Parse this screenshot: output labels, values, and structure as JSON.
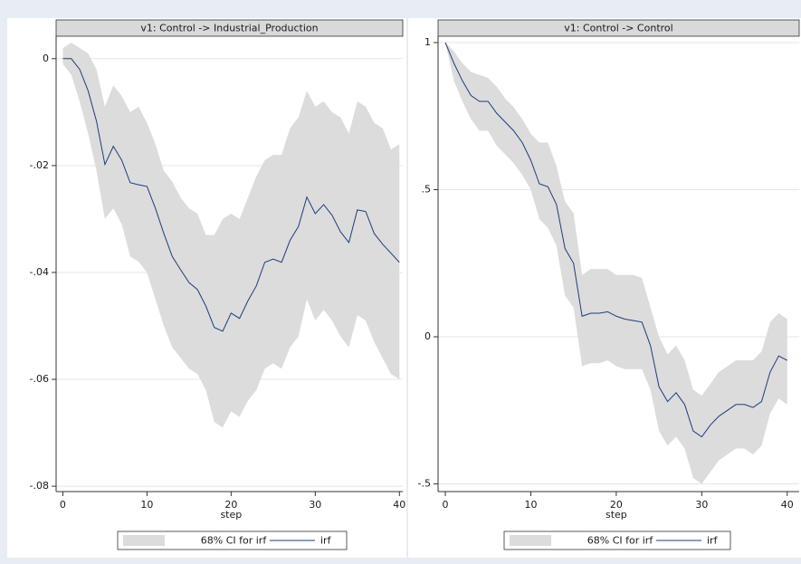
{
  "chart_data": [
    {
      "type": "line",
      "title": "v1: Control -> Industrial_Production",
      "x_label": "step",
      "x": [
        0,
        1,
        2,
        3,
        4,
        5,
        6,
        7,
        8,
        9,
        10,
        11,
        12,
        13,
        14,
        15,
        16,
        17,
        18,
        19,
        20,
        21,
        22,
        23,
        24,
        25,
        26,
        27,
        28,
        29,
        30,
        31,
        32,
        33,
        34,
        35,
        36,
        37,
        38,
        39,
        40
      ],
      "series": [
        {
          "name": "68% CI for irf",
          "color": "#dcdcdc",
          "upper": [
            0.002,
            0.003,
            0.002,
            0.001,
            -0.002,
            -0.009,
            -0.005,
            -0.007,
            -0.01,
            -0.009,
            -0.012,
            -0.016,
            -0.021,
            -0.023,
            -0.026,
            -0.028,
            -0.029,
            -0.033,
            -0.033,
            -0.03,
            -0.029,
            -0.03,
            -0.026,
            -0.022,
            -0.019,
            -0.018,
            -0.018,
            -0.013,
            -0.011,
            -0.006,
            -0.009,
            -0.008,
            -0.01,
            -0.011,
            -0.014,
            -0.008,
            -0.009,
            -0.012,
            -0.013,
            -0.017,
            -0.016
          ],
          "lower": [
            -0.001,
            -0.003,
            -0.008,
            -0.014,
            -0.021,
            -0.03,
            -0.028,
            -0.031,
            -0.037,
            -0.038,
            -0.04,
            -0.045,
            -0.05,
            -0.054,
            -0.056,
            -0.058,
            -0.059,
            -0.062,
            -0.068,
            -0.069,
            -0.066,
            -0.067,
            -0.064,
            -0.062,
            -0.058,
            -0.057,
            -0.058,
            -0.054,
            -0.052,
            -0.045,
            -0.049,
            -0.047,
            -0.049,
            -0.052,
            -0.054,
            -0.048,
            -0.049,
            -0.053,
            -0.056,
            -0.059,
            -0.06
          ]
        },
        {
          "name": "irf",
          "color": "#1a3e7e",
          "values": [
            0,
            0,
            -0.002,
            -0.006,
            -0.0117,
            -0.0198,
            -0.0164,
            -0.019,
            -0.0232,
            -0.0236,
            -0.0239,
            -0.028,
            -0.0327,
            -0.037,
            -0.0395,
            -0.0419,
            -0.0432,
            -0.0463,
            -0.0503,
            -0.051,
            -0.0476,
            -0.0486,
            -0.0453,
            -0.0425,
            -0.0381,
            -0.0375,
            -0.0381,
            -0.034,
            -0.0314,
            -0.0259,
            -0.029,
            -0.0273,
            -0.0293,
            -0.0324,
            -0.0344,
            -0.0283,
            -0.0286,
            -0.0327,
            -0.0347,
            -0.0364,
            -0.0381
          ]
        }
      ],
      "xlim": [
        -0.8,
        40.4
      ],
      "xticks": [
        0,
        10,
        20,
        30,
        40
      ],
      "ylim": [
        -0.081,
        0.0042
      ],
      "yticks": [
        0,
        {
          "value": -0.02,
          "label": "-.02"
        },
        {
          "value": -0.04,
          "label": "-.04"
        },
        {
          "value": -0.06,
          "label": "-.06"
        },
        {
          "value": -0.08,
          "label": "-.08"
        }
      ],
      "grid": true
    },
    {
      "type": "line",
      "title": "v1: Control -> Control",
      "x_label": "step",
      "x": [
        0,
        1,
        2,
        3,
        4,
        5,
        6,
        7,
        8,
        9,
        10,
        11,
        12,
        13,
        14,
        15,
        16,
        17,
        18,
        19,
        20,
        21,
        22,
        23,
        24,
        25,
        26,
        27,
        28,
        29,
        30,
        31,
        32,
        33,
        34,
        35,
        36,
        37,
        38,
        39,
        40
      ],
      "series": [
        {
          "name": "68% CI for irf",
          "color": "#dcdcdc",
          "upper": [
            1.0,
            0.97,
            0.93,
            0.9,
            0.89,
            0.88,
            0.85,
            0.81,
            0.78,
            0.74,
            0.69,
            0.66,
            0.66,
            0.58,
            0.46,
            0.42,
            0.21,
            0.23,
            0.23,
            0.23,
            0.21,
            0.21,
            0.21,
            0.2,
            0.1,
            0.0,
            -0.06,
            -0.03,
            -0.08,
            -0.18,
            -0.2,
            -0.16,
            -0.12,
            -0.1,
            -0.08,
            -0.08,
            -0.08,
            -0.05,
            0.05,
            0.08,
            0.06
          ],
          "lower": [
            1.0,
            0.87,
            0.8,
            0.74,
            0.7,
            0.7,
            0.65,
            0.62,
            0.59,
            0.55,
            0.5,
            0.4,
            0.37,
            0.31,
            0.14,
            0.1,
            -0.1,
            -0.09,
            -0.09,
            -0.08,
            -0.1,
            -0.11,
            -0.11,
            -0.11,
            -0.18,
            -0.32,
            -0.37,
            -0.34,
            -0.38,
            -0.48,
            -0.5,
            -0.46,
            -0.42,
            -0.4,
            -0.38,
            -0.38,
            -0.4,
            -0.37,
            -0.26,
            -0.21,
            -0.23
          ]
        },
        {
          "name": "irf",
          "color": "#1a3e7e",
          "values": [
            1.0,
            0.93,
            0.87,
            0.82,
            0.8,
            0.8,
            0.76,
            0.73,
            0.7,
            0.66,
            0.6,
            0.52,
            0.51,
            0.45,
            0.3,
            0.25,
            0.07,
            0.08,
            0.08,
            0.085,
            0.07,
            0.06,
            0.055,
            0.05,
            -0.03,
            -0.17,
            -0.22,
            -0.19,
            -0.23,
            -0.32,
            -0.34,
            -0.3,
            -0.27,
            -0.25,
            -0.23,
            -0.23,
            -0.24,
            -0.22,
            -0.12,
            -0.065,
            -0.08
          ]
        }
      ],
      "xlim": [
        -0.85,
        41.4
      ],
      "xticks": [
        0,
        10,
        20,
        30,
        40
      ],
      "ylim": [
        -0.526,
        1.0215
      ],
      "yticks": [
        1,
        {
          "value": 0.5,
          "label": ".5"
        },
        0,
        {
          "value": -0.5,
          "label": "-.5"
        }
      ],
      "grid": true
    }
  ]
}
